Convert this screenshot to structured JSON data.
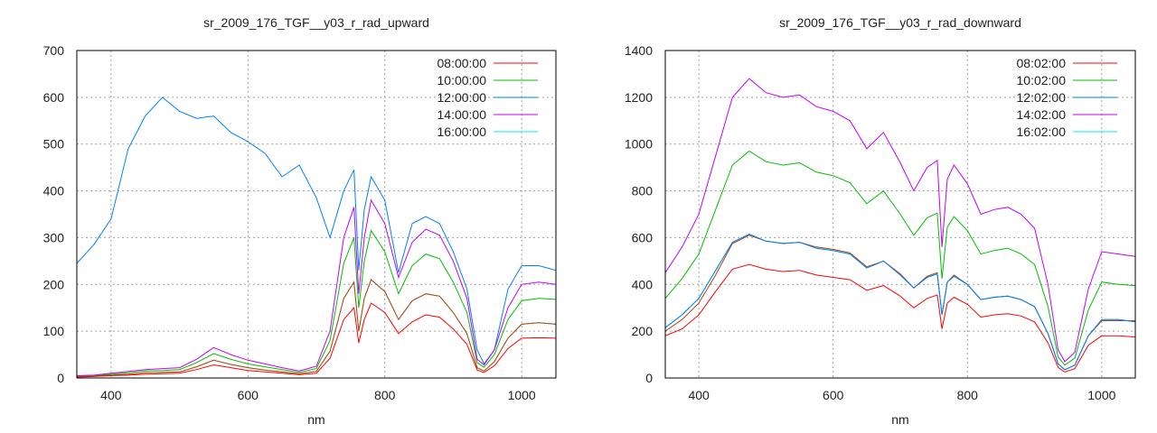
{
  "chart_data": [
    {
      "type": "line",
      "title": "sr_2009_176_TGF__y03_r_rad_upward",
      "xlabel": "nm",
      "ylabel": "",
      "xlim": [
        350,
        1050
      ],
      "ylim": [
        0,
        700
      ],
      "xticks": [
        400,
        600,
        800,
        1000
      ],
      "yticks": [
        0,
        100,
        200,
        300,
        400,
        500,
        600,
        700
      ],
      "grid": true,
      "legend": "top-right",
      "x": [
        350,
        375,
        400,
        425,
        450,
        475,
        500,
        525,
        550,
        575,
        600,
        625,
        650,
        675,
        700,
        720,
        740,
        755,
        762,
        770,
        780,
        800,
        820,
        840,
        860,
        880,
        900,
        920,
        935,
        945,
        960,
        980,
        1000,
        1025,
        1050
      ],
      "series": [
        {
          "name": "08:00:00",
          "color": "#ff0000",
          "values": [
            2,
            3,
            5,
            6,
            8,
            9,
            10,
            18,
            28,
            22,
            16,
            13,
            10,
            7,
            10,
            42,
            125,
            150,
            75,
            125,
            160,
            140,
            95,
            120,
            135,
            130,
            105,
            72,
            17,
            12,
            26,
            63,
            85,
            86,
            85
          ]
        },
        {
          "name": "10:00:00",
          "color": "#00c000",
          "values": [
            4,
            5,
            8,
            11,
            15,
            16,
            18,
            33,
            52,
            40,
            30,
            24,
            18,
            12,
            20,
            80,
            245,
            300,
            150,
            250,
            315,
            270,
            180,
            240,
            265,
            255,
            205,
            140,
            33,
            23,
            50,
            125,
            165,
            170,
            168
          ]
        },
        {
          "name": "12:00:00",
          "color": "#0080ff",
          "values": [
            245,
            285,
            340,
            490,
            560,
            600,
            570,
            555,
            560,
            525,
            505,
            480,
            430,
            455,
            385,
            300,
            400,
            445,
            230,
            360,
            430,
            380,
            225,
            330,
            345,
            330,
            270,
            190,
            60,
            30,
            60,
            190,
            240,
            240,
            230
          ]
        },
        {
          "name": "14:00:00",
          "color": "#c000ff",
          "values": [
            5,
            6,
            10,
            14,
            18,
            20,
            22,
            40,
            65,
            50,
            38,
            30,
            22,
            15,
            25,
            100,
            300,
            365,
            180,
            300,
            380,
            330,
            215,
            290,
            318,
            305,
            250,
            170,
            40,
            28,
            60,
            150,
            200,
            205,
            200
          ]
        },
        {
          "name": "16:00:00",
          "color": "#00eeee",
          "values": [
            3,
            4,
            6,
            8,
            11,
            12,
            13,
            24,
            38,
            29,
            22,
            17,
            13,
            9,
            14,
            57,
            170,
            205,
            100,
            170,
            210,
            185,
            125,
            165,
            180,
            175,
            140,
            95,
            22,
            15,
            35,
            85,
            115,
            118,
            115
          ]
        },
        {
          "name": "",
          "color": "#c04000",
          "values": [
            3,
            4,
            6,
            8,
            11,
            12,
            13,
            24,
            38,
            29,
            22,
            17,
            13,
            9,
            14,
            57,
            170,
            205,
            100,
            170,
            210,
            185,
            125,
            165,
            180,
            175,
            140,
            95,
            22,
            15,
            35,
            85,
            115,
            118,
            115
          ]
        }
      ]
    },
    {
      "type": "line",
      "title": "sr_2009_176_TGF__y03_r_rad_downward",
      "xlabel": "nm",
      "ylabel": "",
      "xlim": [
        350,
        1050
      ],
      "ylim": [
        0,
        1400
      ],
      "xticks": [
        400,
        600,
        800,
        1000
      ],
      "yticks": [
        0,
        200,
        400,
        600,
        800,
        1000,
        1200,
        1400
      ],
      "grid": true,
      "legend": "top-right",
      "x": [
        350,
        375,
        400,
        425,
        450,
        475,
        500,
        525,
        550,
        575,
        600,
        625,
        650,
        675,
        700,
        720,
        740,
        755,
        762,
        770,
        780,
        800,
        820,
        840,
        860,
        880,
        900,
        920,
        935,
        945,
        960,
        980,
        1000,
        1025,
        1050
      ],
      "series": [
        {
          "name": "08:02:00",
          "color": "#ff0000",
          "values": [
            180,
            210,
            270,
            370,
            465,
            485,
            465,
            455,
            460,
            440,
            430,
            420,
            375,
            395,
            350,
            300,
            340,
            355,
            210,
            320,
            345,
            315,
            260,
            270,
            275,
            265,
            240,
            150,
            45,
            25,
            40,
            140,
            180,
            180,
            175
          ]
        },
        {
          "name": "10:02:00",
          "color": "#00c000",
          "values": [
            340,
            425,
            530,
            720,
            910,
            970,
            925,
            910,
            920,
            880,
            865,
            835,
            745,
            800,
            700,
            610,
            685,
            705,
            425,
            645,
            690,
            630,
            530,
            545,
            555,
            530,
            485,
            305,
            90,
            55,
            85,
            290,
            410,
            400,
            395
          ]
        },
        {
          "name": "12:02:00",
          "color": "#0080ff",
          "values": [
            215,
            270,
            340,
            460,
            580,
            615,
            585,
            575,
            580,
            555,
            545,
            530,
            470,
            500,
            440,
            385,
            430,
            445,
            270,
            410,
            435,
            400,
            335,
            345,
            350,
            335,
            305,
            190,
            60,
            35,
            55,
            180,
            250,
            250,
            240
          ]
        },
        {
          "name": "14:02:00",
          "color": "#c000ff",
          "values": [
            450,
            560,
            700,
            950,
            1200,
            1280,
            1220,
            1200,
            1210,
            1160,
            1140,
            1100,
            980,
            1050,
            920,
            800,
            900,
            930,
            560,
            850,
            910,
            830,
            700,
            720,
            730,
            700,
            640,
            400,
            120,
            70,
            110,
            380,
            540,
            530,
            520
          ]
        },
        {
          "name": "16:02:00",
          "color": "#00eeee",
          "values": [
            215,
            270,
            340,
            460,
            580,
            615,
            585,
            575,
            580,
            555,
            545,
            530,
            470,
            500,
            440,
            385,
            430,
            445,
            270,
            410,
            435,
            400,
            335,
            345,
            350,
            335,
            305,
            190,
            60,
            35,
            55,
            180,
            250,
            250,
            240
          ]
        },
        {
          "name": "",
          "color": "#c04000",
          "values": [
            200,
            250,
            320,
            440,
            575,
            610,
            585,
            575,
            580,
            560,
            550,
            535,
            475,
            500,
            445,
            385,
            435,
            450,
            270,
            410,
            440,
            400,
            335,
            345,
            350,
            335,
            305,
            190,
            60,
            35,
            55,
            180,
            245,
            245,
            245
          ]
        }
      ]
    }
  ]
}
